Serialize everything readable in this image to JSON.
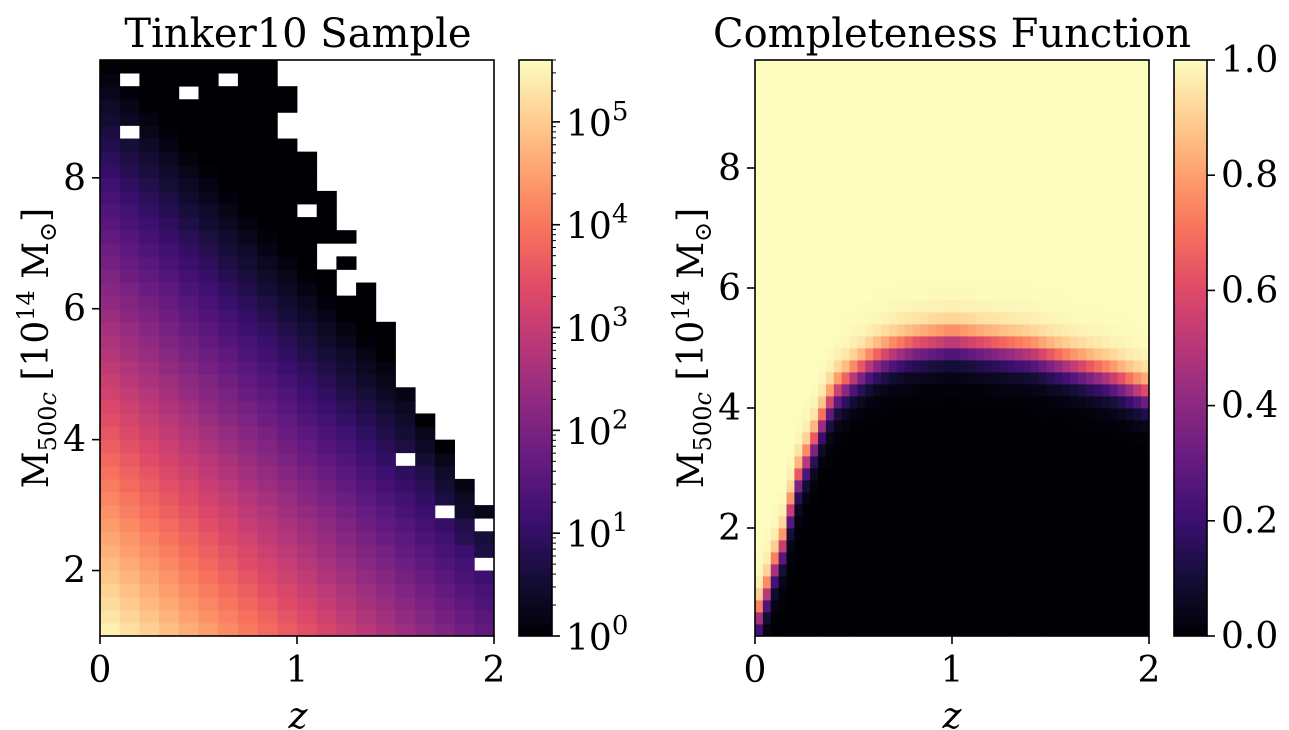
{
  "chart_data": [
    {
      "type": "heatmap",
      "title": "Tinker10 Sample",
      "xlabel": "z",
      "ylabel": "M500c [10^14 M⊙]",
      "xlim": [
        0,
        2
      ],
      "ylim": [
        1.0,
        9.8
      ],
      "xticks": [
        "0",
        "1",
        "2"
      ],
      "yticks": [
        "2",
        "4",
        "6",
        "8"
      ],
      "colorscale": "magma",
      "colorbar": {
        "scale": "log",
        "range": [
          1,
          400000
        ],
        "ticks": [
          "10^0",
          "10^1",
          "10^2",
          "10^3",
          "10^4",
          "10^5"
        ]
      },
      "grid": {
        "z_bins": 20,
        "z_step": 0.1,
        "mass_bins": 44,
        "mass_step": 0.2
      },
      "model": {
        "n_at_origin": 400000,
        "ln_decay_per_unit_mass": 1.45,
        "ln_decay_per_unit_z": 4.6
      },
      "empty_above_mass_edge": [
        [
          0.0,
          9.8
        ],
        [
          0.9,
          9.8
        ],
        [
          1.0,
          9.0
        ],
        [
          1.1,
          8.2
        ],
        [
          1.2,
          7.4
        ],
        [
          1.3,
          6.8
        ],
        [
          1.4,
          6.2
        ],
        [
          1.5,
          5.3
        ],
        [
          1.6,
          4.6
        ],
        [
          1.7,
          4.2
        ],
        [
          1.8,
          3.6
        ],
        [
          1.9,
          3.4
        ],
        [
          2.0,
          3.0
        ]
      ]
    },
    {
      "type": "heatmap",
      "title": "Completeness Function",
      "xlabel": "z",
      "ylabel": "M500c [10^14 M⊙]",
      "xlim": [
        0,
        2
      ],
      "ylim": [
        0.2,
        9.8
      ],
      "xticks": [
        "0",
        "1",
        "2"
      ],
      "yticks": [
        "2",
        "4",
        "6",
        "8"
      ],
      "colorscale": "magma",
      "colorbar": {
        "scale": "linear",
        "range": [
          0,
          1
        ],
        "ticks": [
          "0.0",
          "0.2",
          "0.4",
          "0.6",
          "0.8",
          "1.0"
        ]
      },
      "grid": {
        "z_step": 0.04,
        "mass_step": 0.2
      },
      "threshold_mass_50pct": [
        [
          0.0,
          0.5
        ],
        [
          0.04,
          0.55
        ],
        [
          0.08,
          1.25
        ],
        [
          0.12,
          1.4
        ],
        [
          0.16,
          1.95
        ],
        [
          0.2,
          2.6
        ],
        [
          0.24,
          3.0
        ],
        [
          0.28,
          3.2
        ],
        [
          0.32,
          3.6
        ],
        [
          0.36,
          3.9
        ],
        [
          0.4,
          4.2
        ],
        [
          0.5,
          4.5
        ],
        [
          0.6,
          4.75
        ],
        [
          0.7,
          4.9
        ],
        [
          0.8,
          5.0
        ],
        [
          0.9,
          5.05
        ],
        [
          1.0,
          5.1
        ],
        [
          1.1,
          5.05
        ],
        [
          1.2,
          5.0
        ],
        [
          1.3,
          4.95
        ],
        [
          1.4,
          4.9
        ],
        [
          1.5,
          4.8
        ],
        [
          1.6,
          4.7
        ],
        [
          1.7,
          4.6
        ],
        [
          1.8,
          4.5
        ],
        [
          1.9,
          4.35
        ],
        [
          2.0,
          4.2
        ]
      ],
      "transition_width": 0.35
    }
  ]
}
